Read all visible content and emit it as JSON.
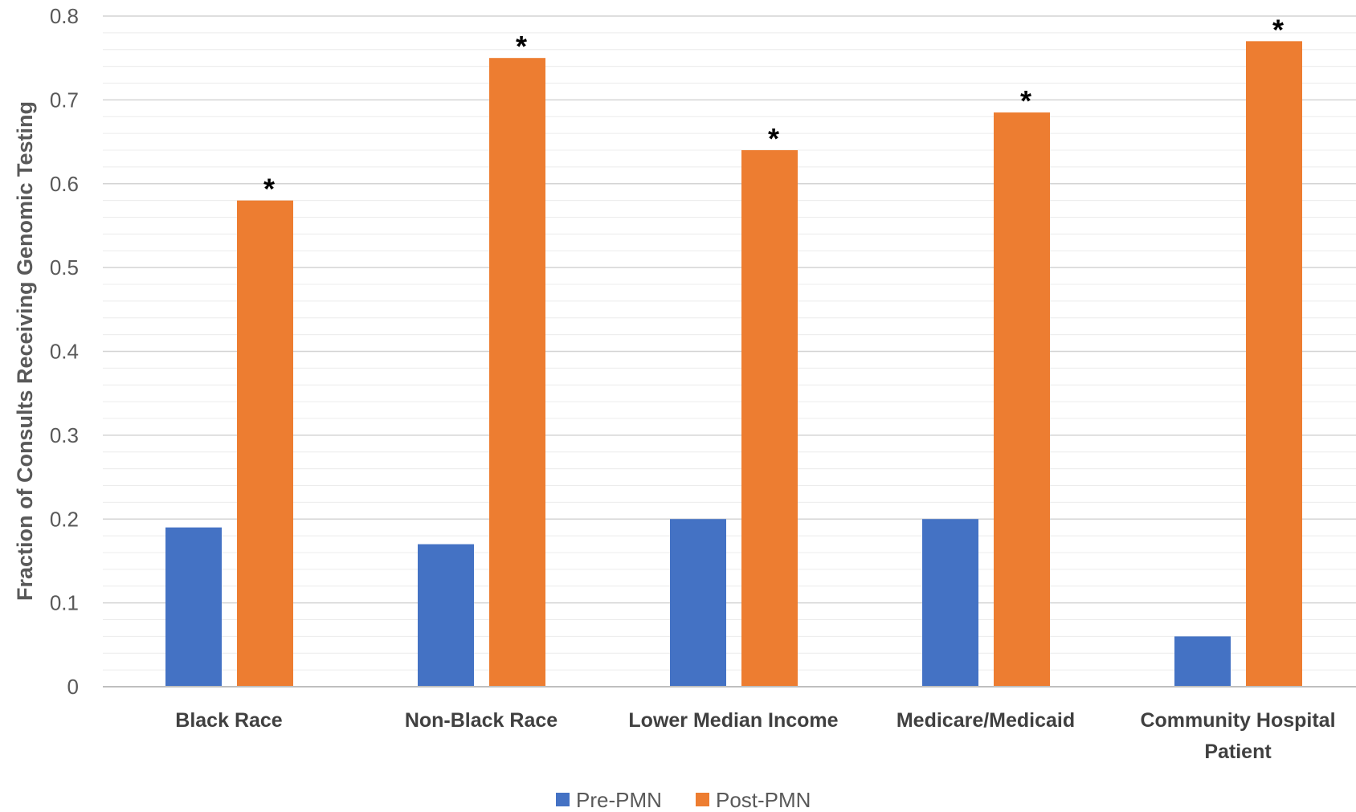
{
  "chart_data": {
    "type": "bar",
    "title": "",
    "xlabel": "",
    "ylabel": "Fraction of Consults Receiving Genomic Testing",
    "ylim": [
      0,
      0.8
    ],
    "yticks": [
      "0",
      "0.1",
      "0.2",
      "0.3",
      "0.4",
      "0.5",
      "0.6",
      "0.7",
      "0.8"
    ],
    "grid": true,
    "legend_position": "bottom",
    "categories": [
      [
        "Black Race"
      ],
      [
        "Non-Black Race"
      ],
      [
        "Lower Median Income"
      ],
      [
        "Medicare/Medicaid"
      ],
      [
        "Community Hospital",
        "Patient"
      ]
    ],
    "series": [
      {
        "name": "Pre-PMN",
        "color": "#4472C4",
        "values": [
          0.19,
          0.17,
          0.2,
          0.2,
          0.06
        ]
      },
      {
        "name": "Post-PMN",
        "color": "#ED7D31",
        "values": [
          0.58,
          0.75,
          0.64,
          0.685,
          0.77
        ]
      }
    ],
    "annotations": [
      "*",
      "*",
      "*",
      "*",
      "*"
    ]
  }
}
